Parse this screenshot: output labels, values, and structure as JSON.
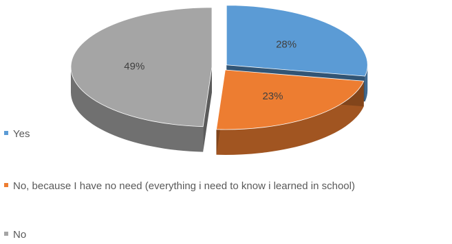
{
  "chart_data": {
    "type": "pie",
    "style": "3d exploded",
    "categories": [
      "Yes",
      "No, because I have no need (everything i need to know i learned in school)",
      "No"
    ],
    "values": [
      28,
      23,
      49
    ],
    "data_labels": [
      "28%",
      "23%",
      "49%"
    ],
    "colors": [
      "#5b9bd5",
      "#ed7d31",
      "#a5a5a5"
    ],
    "legend_position": "bottom-left"
  }
}
